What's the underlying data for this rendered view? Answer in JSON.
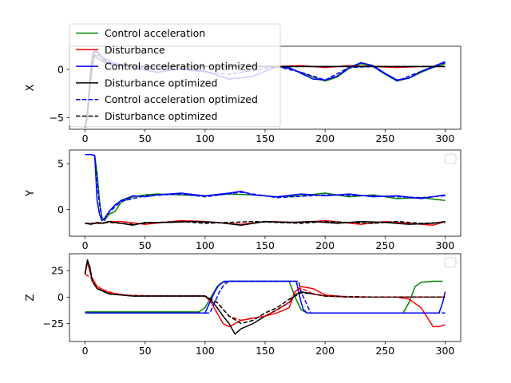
{
  "chart_data": [
    {
      "type": "line",
      "ylabel": "X",
      "xlim": [
        -13,
        313
      ],
      "ylim": [
        -6.2,
        2.4
      ],
      "xticks": [
        0,
        50,
        100,
        150,
        200,
        250,
        300
      ],
      "yticks": [
        -5,
        0
      ],
      "xtick_labels": [
        "0",
        "50",
        "100",
        "150",
        "200",
        "250",
        "300"
      ],
      "ytick_labels": [
        "−5",
        "0"
      ],
      "legend": {
        "placement": "top-left",
        "entries": [
          {
            "label": "Control acceleration",
            "color": "#008000",
            "dash": "solid"
          },
          {
            "label": "Disturbance",
            "color": "#ff0000",
            "dash": "solid"
          },
          {
            "label": "Control acceleration optimized",
            "color": "#0000ff",
            "dash": "solid"
          },
          {
            "label": "Disturbance optimized",
            "color": "#000000",
            "dash": "solid"
          },
          {
            "label": "Control acceleration optimized",
            "color": "#0000ff",
            "dash": "dashed"
          },
          {
            "label": "Disturbance optimized",
            "color": "#000000",
            "dash": "dashed"
          }
        ]
      },
      "series": [
        {
          "color": "#008000",
          "dash": "solid",
          "x": [
            0,
            2,
            4,
            6,
            8,
            10,
            15,
            20,
            40,
            80,
            120,
            160,
            170,
            180,
            190,
            200,
            210,
            220,
            230,
            240,
            250,
            260,
            270,
            280,
            290,
            300
          ],
          "y": [
            -6,
            -5,
            -2,
            0,
            1.4,
            1.5,
            1.2,
            0.6,
            0.3,
            0.3,
            0.3,
            0.3,
            0.1,
            -0.3,
            -0.8,
            -1.2,
            -0.8,
            0.1,
            0.6,
            0.3,
            -0.5,
            -1.2,
            -0.9,
            -0.3,
            0.2,
            0.6
          ]
        },
        {
          "color": "#ff0000",
          "dash": "solid",
          "x": [
            0,
            2,
            4,
            6,
            8,
            10,
            15,
            20,
            40,
            80,
            120,
            160,
            180,
            200,
            220,
            240,
            260,
            280,
            300
          ],
          "y": [
            -6,
            -5,
            -1,
            1.5,
            2.0,
            1.8,
            1.0,
            0.6,
            0.3,
            0.3,
            0.3,
            0.3,
            0.4,
            0.2,
            0.4,
            0.3,
            0.2,
            0.3,
            0.3
          ]
        },
        {
          "color": "#0000ff",
          "dash": "solid",
          "x": [
            0,
            2,
            4,
            6,
            8,
            10,
            12,
            15,
            20,
            25,
            30,
            40,
            60,
            80,
            100,
            120,
            140,
            160,
            170,
            180,
            190,
            200,
            210,
            220,
            230,
            240,
            250,
            260,
            270,
            280,
            290,
            300
          ],
          "y": [
            -6,
            -5,
            -1.5,
            1.0,
            1.8,
            1.9,
            1.6,
            1.2,
            0.9,
            0.6,
            0.5,
            0.2,
            -0.3,
            0.1,
            -0.2,
            -1.0,
            -0.7,
            0.3,
            0.2,
            -0.4,
            -1.0,
            -1.1,
            -0.7,
            0.2,
            0.7,
            0.4,
            -0.4,
            -1.1,
            -0.9,
            -0.2,
            0.3,
            0.8
          ]
        },
        {
          "color": "#000000",
          "dash": "solid",
          "x": [
            0,
            2,
            4,
            6,
            8,
            10,
            15,
            20,
            40,
            80,
            120,
            160,
            200,
            240,
            280,
            300
          ],
          "y": [
            -6,
            -4.5,
            -1,
            1.2,
            1.5,
            1.2,
            0.8,
            0.5,
            0.3,
            0.3,
            0.3,
            0.3,
            0.3,
            0.3,
            0.3,
            0.3
          ]
        },
        {
          "color": "#0000ff",
          "dash": "dashed",
          "x": [
            0,
            2,
            4,
            6,
            8,
            10,
            15,
            20,
            40,
            80,
            120,
            160,
            180,
            200,
            220,
            240,
            260,
            280,
            300
          ],
          "y": [
            -6,
            -5,
            -1.2,
            1.2,
            1.9,
            1.8,
            1.1,
            0.7,
            0.2,
            0.0,
            -0.5,
            0.3,
            -0.3,
            -1.1,
            0.2,
            0.3,
            -1.2,
            -0.2,
            0.7
          ]
        },
        {
          "color": "#000000",
          "dash": "dashed",
          "x": [
            0,
            2,
            4,
            6,
            8,
            10,
            15,
            20,
            40,
            80,
            120,
            160,
            200,
            240,
            280,
            300
          ],
          "y": [
            -6,
            -4.5,
            -1,
            1.2,
            1.5,
            1.2,
            0.8,
            0.5,
            0.3,
            0.3,
            0.3,
            0.3,
            0.3,
            0.3,
            0.3,
            0.3
          ]
        }
      ]
    },
    {
      "type": "line",
      "ylabel": "Y",
      "xlim": [
        -13,
        313
      ],
      "ylim": [
        -2.9,
        6.5
      ],
      "xticks": [
        0,
        50,
        100,
        150,
        200,
        250,
        300
      ],
      "yticks": [
        0,
        5
      ],
      "xtick_labels": [
        "0",
        "50",
        "100",
        "150",
        "200",
        "250",
        "300"
      ],
      "ytick_labels": [
        "0",
        "5"
      ],
      "legend": {
        "placement": "upper right",
        "entries": []
      },
      "series": [
        {
          "color": "#008000",
          "dash": "solid",
          "x": [
            0,
            5,
            8,
            10,
            12,
            14,
            16,
            20,
            25,
            30,
            40,
            50,
            60,
            80,
            100,
            120,
            140,
            160,
            180,
            200,
            220,
            240,
            260,
            280,
            300
          ],
          "y": [
            6,
            6,
            5.9,
            4,
            1,
            -0.8,
            -1.2,
            -0.5,
            -0.2,
            0.8,
            1.4,
            1.6,
            1.7,
            1.6,
            1.5,
            1.7,
            1.6,
            1.4,
            1.5,
            1.8,
            1.4,
            1.6,
            1.2,
            1.3,
            1.0
          ]
        },
        {
          "color": "#ff0000",
          "dash": "solid",
          "x": [
            0,
            5,
            8,
            10,
            12,
            14,
            16,
            20,
            30,
            50,
            80,
            100,
            130,
            150,
            180,
            200,
            230,
            250,
            270,
            290,
            300
          ],
          "y": [
            -1.5,
            -1.5,
            -1.5,
            -1.5,
            -1.5,
            -1.5,
            -1.4,
            -1.3,
            -1.3,
            -1.6,
            -1.2,
            -1.3,
            -1.6,
            -1.3,
            -1.4,
            -1.2,
            -1.6,
            -1.3,
            -1.5,
            -1.7,
            -1.3
          ]
        },
        {
          "color": "#0000ff",
          "dash": "solid",
          "x": [
            0,
            5,
            8,
            9,
            10,
            12,
            14,
            16,
            20,
            25,
            30,
            40,
            50,
            60,
            80,
            100,
            120,
            130,
            140,
            160,
            180,
            200,
            220,
            240,
            260,
            280,
            300
          ],
          "y": [
            6,
            6,
            5.9,
            3.5,
            1,
            -0.5,
            -1.2,
            -1.0,
            -0.2,
            0.5,
            1.0,
            1.5,
            1.4,
            1.6,
            1.8,
            1.5,
            1.8,
            2.0,
            1.6,
            1.4,
            1.7,
            1.5,
            1.7,
            1.4,
            1.5,
            1.2,
            1.6
          ]
        },
        {
          "color": "#000000",
          "dash": "solid",
          "x": [
            0,
            5,
            10,
            15,
            20,
            30,
            40,
            50,
            70,
            90,
            110,
            130,
            150,
            170,
            190,
            210,
            230,
            250,
            270,
            290,
            300
          ],
          "y": [
            -1.5,
            -1.6,
            -1.4,
            -1.5,
            -1.3,
            -1.5,
            -1.7,
            -1.4,
            -1.4,
            -1.3,
            -1.4,
            -1.7,
            -1.3,
            -1.4,
            -1.3,
            -1.5,
            -1.3,
            -1.4,
            -1.6,
            -1.5,
            -1.3
          ]
        },
        {
          "color": "#0000ff",
          "dash": "dashed",
          "x": [
            0,
            5,
            8,
            10,
            12,
            14,
            16,
            20,
            30,
            50,
            80,
            100,
            130,
            160,
            200,
            240,
            280,
            300
          ],
          "y": [
            6,
            6,
            5.9,
            3,
            0.5,
            -1.0,
            -1.1,
            -0.3,
            0.9,
            1.5,
            1.7,
            1.4,
            1.9,
            1.3,
            1.6,
            1.5,
            1.3,
            1.5
          ]
        },
        {
          "color": "#000000",
          "dash": "dashed",
          "x": [
            0,
            10,
            20,
            40,
            60,
            80,
            100,
            120,
            140,
            160,
            180,
            200,
            220,
            240,
            260,
            280,
            300
          ],
          "y": [
            -1.5,
            -1.5,
            -1.4,
            -1.6,
            -1.4,
            -1.3,
            -1.5,
            -1.4,
            -1.3,
            -1.4,
            -1.5,
            -1.3,
            -1.4,
            -1.5,
            -1.3,
            -1.5,
            -1.4
          ]
        }
      ]
    },
    {
      "type": "line",
      "ylabel": "Z",
      "xlim": [
        -13,
        313
      ],
      "ylim": [
        -42,
        41
      ],
      "xticks": [
        0,
        50,
        100,
        150,
        200,
        250,
        300
      ],
      "yticks": [
        -25,
        0,
        25
      ],
      "xtick_labels": [
        "0",
        "50",
        "100",
        "150",
        "200",
        "250",
        "300"
      ],
      "ytick_labels": [
        "−25",
        "0",
        "25"
      ],
      "legend": {
        "placement": "upper right",
        "entries": []
      },
      "series": [
        {
          "color": "#008000",
          "dash": "solid",
          "x": [
            0,
            95,
            100,
            105,
            110,
            115,
            120,
            170,
            175,
            180,
            185,
            265,
            270,
            275,
            280,
            290,
            298
          ],
          "y": [
            -14,
            -14,
            -10,
            0,
            10,
            14,
            15,
            15,
            0,
            -12,
            -15,
            -15,
            -5,
            10,
            14,
            15,
            15
          ]
        },
        {
          "color": "#ff0000",
          "dash": "solid",
          "x": [
            0,
            2,
            5,
            10,
            20,
            40,
            100,
            105,
            110,
            115,
            120,
            125,
            130,
            140,
            150,
            160,
            170,
            175,
            180,
            190,
            200,
            220,
            240,
            260,
            270,
            280,
            290,
            295,
            300
          ],
          "y": [
            22,
            33,
            20,
            10,
            4,
            1,
            1,
            -5,
            -15,
            -25,
            -28,
            -25,
            -22,
            -20,
            -18,
            -15,
            -10,
            5,
            10,
            8,
            2,
            0,
            0,
            0,
            -2,
            -10,
            -28,
            -28,
            -26
          ]
        },
        {
          "color": "#0000ff",
          "dash": "solid",
          "x": [
            0,
            100,
            104,
            108,
            112,
            116,
            120,
            176,
            178,
            180,
            182,
            185,
            295,
            298,
            300
          ],
          "y": [
            -15,
            -15,
            -5,
            5,
            12,
            15,
            15,
            15,
            5,
            -5,
            -12,
            -15,
            -15,
            -5,
            5
          ]
        },
        {
          "color": "#000000",
          "dash": "solid",
          "x": [
            0,
            2,
            4,
            6,
            10,
            20,
            40,
            100,
            105,
            110,
            115,
            120,
            125,
            130,
            140,
            150,
            160,
            170,
            175,
            180,
            190,
            200,
            220,
            240,
            260,
            280,
            300
          ],
          "y": [
            22,
            35,
            28,
            15,
            8,
            3,
            1,
            1,
            -3,
            -10,
            -18,
            -25,
            -35,
            -30,
            -25,
            -18,
            -12,
            -5,
            2,
            5,
            3,
            1,
            0,
            0,
            0,
            0,
            0
          ]
        },
        {
          "color": "#0000ff",
          "dash": "dashed",
          "x": [
            0,
            104,
            108,
            112,
            116,
            120,
            178,
            180,
            184,
            188,
            300
          ],
          "y": [
            -15,
            -15,
            -5,
            5,
            12,
            15,
            15,
            5,
            -5,
            -15,
            -15
          ]
        },
        {
          "color": "#ff0000",
          "dash": "dashed",
          "x": [
            0,
            5,
            10,
            30,
            60,
            100,
            110,
            120,
            130,
            140,
            150,
            160,
            170,
            175,
            180,
            185,
            190,
            200,
            220,
            260,
            300
          ],
          "y": [
            22,
            18,
            8,
            2,
            1,
            1,
            -5,
            -18,
            -22,
            -20,
            -18,
            -12,
            -5,
            5,
            8,
            6,
            3,
            1,
            0,
            0,
            0
          ]
        },
        {
          "color": "#000000",
          "dash": "dashed",
          "x": [
            0,
            2,
            4,
            6,
            10,
            20,
            40,
            100,
            110,
            120,
            130,
            140,
            150,
            160,
            170,
            180,
            190,
            200,
            240,
            300
          ],
          "y": [
            22,
            35,
            28,
            15,
            8,
            3,
            1,
            1,
            -5,
            -18,
            -25,
            -22,
            -15,
            -10,
            -2,
            4,
            3,
            1,
            0,
            0
          ]
        }
      ]
    }
  ]
}
